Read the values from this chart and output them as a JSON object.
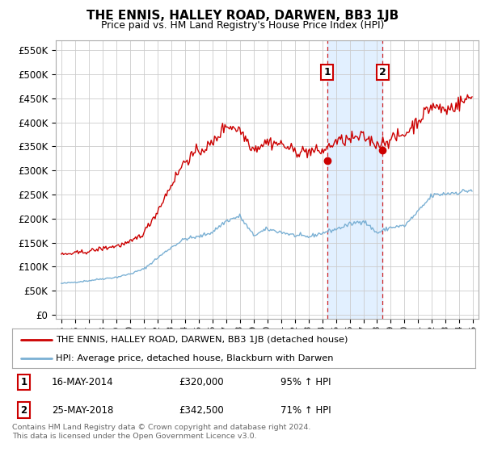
{
  "title": "THE ENNIS, HALLEY ROAD, DARWEN, BB3 1JB",
  "subtitle": "Price paid vs. HM Land Registry's House Price Index (HPI)",
  "legend_line1": "THE ENNIS, HALLEY ROAD, DARWEN, BB3 1JB (detached house)",
  "legend_line2": "HPI: Average price, detached house, Blackburn with Darwen",
  "annotation1": {
    "label": "1",
    "date": "16-MAY-2014",
    "price": "£320,000",
    "pct": "95% ↑ HPI",
    "x_year": 2014.37,
    "y_val": 320000
  },
  "annotation2": {
    "label": "2",
    "date": "25-MAY-2018",
    "price": "£342,500",
    "pct": "71% ↑ HPI",
    "x_year": 2018.39,
    "y_val": 342500
  },
  "footer": "Contains HM Land Registry data © Crown copyright and database right 2024.\nThis data is licensed under the Open Government Licence v3.0.",
  "hpi_color": "#7ab0d4",
  "price_color": "#cc0000",
  "annotation_box_color": "#cc0000",
  "shaded_region_color": "#ddeeff",
  "yticks": [
    0,
    50000,
    100000,
    150000,
    200000,
    250000,
    300000,
    350000,
    400000,
    450000,
    500000,
    550000
  ],
  "ylim_bottom": -8000,
  "ylim_top": 570000,
  "xlim_start": 1994.6,
  "xlim_end": 2025.4,
  "hpi_anchors": {
    "1995": 65000,
    "1996": 68000,
    "1997": 71000,
    "1998": 75000,
    "1999": 78000,
    "2000": 85000,
    "2001": 95000,
    "2002": 118000,
    "2003": 140000,
    "2004": 158000,
    "2005": 162000,
    "2006": 172000,
    "2007": 195000,
    "2008": 205000,
    "2009": 165000,
    "2010": 178000,
    "2011": 172000,
    "2012": 165000,
    "2013": 162000,
    "2014": 170000,
    "2015": 178000,
    "2016": 188000,
    "2017": 196000,
    "2018": 170000,
    "2019": 182000,
    "2020": 185000,
    "2021": 215000,
    "2022": 248000,
    "2023": 252000,
    "2024": 255000,
    "2025": 260000
  },
  "prop_anchors": {
    "1995": 125000,
    "1996": 128000,
    "1997": 132000,
    "1998": 138000,
    "1999": 143000,
    "2000": 150000,
    "2001": 170000,
    "2002": 215000,
    "2003": 270000,
    "2004": 320000,
    "2005": 340000,
    "2006": 355000,
    "2007": 395000,
    "2008": 385000,
    "2009": 345000,
    "2010": 360000,
    "2011": 355000,
    "2012": 340000,
    "2013": 340000,
    "2014": 340000,
    "2015": 360000,
    "2016": 365000,
    "2017": 370000,
    "2018": 355000,
    "2019": 365000,
    "2020": 375000,
    "2021": 405000,
    "2022": 435000,
    "2023": 425000,
    "2024": 440000,
    "2025": 455000
  }
}
